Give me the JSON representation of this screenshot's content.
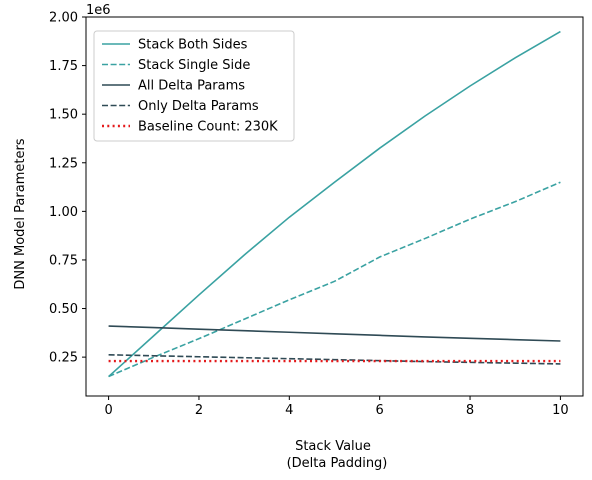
{
  "chart_data": {
    "type": "line",
    "title": "",
    "xlabel_lines": [
      "Stack Value",
      "(Delta Padding)"
    ],
    "ylabel": "DNN Model Parameters",
    "y_offset_text": "1e6",
    "y_scale": 1000000,
    "xlim": [
      -0.5,
      10.5
    ],
    "ylim": [
      50000,
      2000000
    ],
    "xticks": [
      0,
      2,
      4,
      6,
      8,
      10
    ],
    "yticks": [
      250000,
      500000,
      750000,
      1000000,
      1250000,
      1500000,
      1750000,
      2000000
    ],
    "ytick_labels": [
      "0.25",
      "0.50",
      "0.75",
      "1.00",
      "1.25",
      "1.50",
      "1.75",
      "2.00"
    ],
    "xtick_labels": [
      "0",
      "2",
      "4",
      "6",
      "8",
      "10"
    ],
    "grid": false,
    "legend_position": "top-left",
    "x": [
      0,
      1,
      2,
      3,
      4,
      5,
      6,
      7,
      8,
      9,
      10
    ],
    "series": [
      {
        "name": "Stack Both Sides",
        "color": "#3aa2a2",
        "style": "solid",
        "values": [
          150000,
          360000,
          570000,
          775000,
          970000,
          1150000,
          1325000,
          1490000,
          1645000,
          1790000,
          1925000
        ]
      },
      {
        "name": "Stack Single Side",
        "color": "#3aa2a2",
        "style": "dashed",
        "values": [
          150000,
          250000,
          345000,
          445000,
          545000,
          640000,
          765000,
          860000,
          960000,
          1050000,
          1150000
        ]
      },
      {
        "name": "All Delta Params",
        "color": "#2f4a55",
        "style": "solid",
        "values": [
          410000,
          402000,
          394000,
          386000,
          378000,
          370000,
          362000,
          354000,
          347000,
          340000,
          333000
        ]
      },
      {
        "name": "Only Delta Params",
        "color": "#2f4a55",
        "style": "dashed",
        "values": [
          262000,
          257000,
          252000,
          247000,
          242000,
          237000,
          232000,
          227000,
          223000,
          219000,
          215000
        ]
      },
      {
        "name": "Baseline Count: 230K",
        "color": "#e41a1c",
        "style": "dotted",
        "values": [
          230000,
          230000,
          230000,
          230000,
          230000,
          230000,
          230000,
          230000,
          230000,
          230000,
          230000
        ]
      }
    ]
  }
}
